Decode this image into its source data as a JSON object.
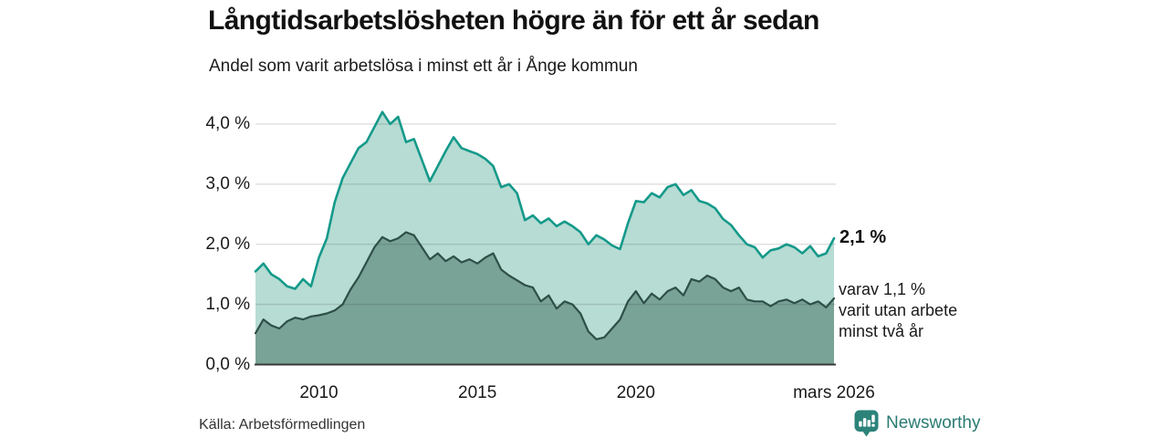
{
  "header": {
    "title": "Långtidsarbetslösheten högre än för ett år sedan",
    "subtitle": "Andel som varit arbetslösa i minst ett år i Ånge kommun"
  },
  "chart_data": {
    "type": "area",
    "title": "Långtidsarbetslösheten högre än för ett år sedan",
    "subtitle": "Andel som varit arbetslösa i minst ett år i Ånge kommun",
    "unit": "%",
    "grid": "horizontal",
    "legend_position": "none",
    "ylim": [
      0,
      4.4
    ],
    "xlim": [
      2008,
      2026.25
    ],
    "y_ticks": [
      {
        "label": "4,0 %",
        "value": 4
      },
      {
        "label": "3,0 %",
        "value": 3
      },
      {
        "label": "2,0 %",
        "value": 2
      },
      {
        "label": "1,0 %",
        "value": 1
      },
      {
        "label": "0,0 %",
        "value": 0
      }
    ],
    "x_ticks": [
      {
        "label": "2010",
        "year": 2010
      },
      {
        "label": "2015",
        "year": 2015
      },
      {
        "label": "2020",
        "year": 2020
      },
      {
        "label": "mars 2026",
        "year": 2026.25
      }
    ],
    "x": [
      2008,
      2008.25,
      2008.5,
      2008.75,
      2009,
      2009.25,
      2009.5,
      2009.75,
      2010,
      2010.25,
      2010.5,
      2010.75,
      2011,
      2011.25,
      2011.5,
      2011.75,
      2012,
      2012.25,
      2012.5,
      2012.75,
      2013,
      2013.25,
      2013.5,
      2013.75,
      2014,
      2014.25,
      2014.5,
      2014.75,
      2015,
      2015.25,
      2015.5,
      2015.75,
      2016,
      2016.25,
      2016.5,
      2016.75,
      2017,
      2017.25,
      2017.5,
      2017.75,
      2018,
      2018.25,
      2018.5,
      2018.75,
      2019,
      2019.25,
      2019.5,
      2019.75,
      2020,
      2020.25,
      2020.5,
      2020.75,
      2021,
      2021.25,
      2021.5,
      2021.75,
      2022,
      2022.25,
      2022.5,
      2022.75,
      2023,
      2023.25,
      2023.5,
      2023.75,
      2024,
      2024.25,
      2024.5,
      2024.75,
      2025,
      2025.25,
      2025.5,
      2025.75,
      2026,
      2026.25
    ],
    "series": [
      {
        "name": "Arbetslösa minst ett år",
        "line_color": "#14998a",
        "fill_color": "#b6dcd3",
        "latest_value": 2.1,
        "values": [
          1.55,
          1.68,
          1.5,
          1.42,
          1.3,
          1.26,
          1.42,
          1.3,
          1.78,
          2.1,
          2.7,
          3.1,
          3.35,
          3.6,
          3.7,
          3.95,
          4.2,
          4.0,
          4.12,
          3.7,
          3.75,
          3.4,
          3.05,
          3.3,
          3.55,
          3.78,
          3.6,
          3.55,
          3.5,
          3.42,
          3.3,
          2.95,
          3.0,
          2.85,
          2.4,
          2.48,
          2.35,
          2.43,
          2.3,
          2.38,
          2.3,
          2.2,
          2.0,
          2.15,
          2.08,
          1.98,
          1.92,
          2.35,
          2.72,
          2.7,
          2.85,
          2.78,
          2.95,
          3.0,
          2.82,
          2.9,
          2.72,
          2.68,
          2.6,
          2.42,
          2.32,
          2.15,
          2.0,
          1.95,
          1.78,
          1.9,
          1.93,
          2.0,
          1.95,
          1.85,
          1.97,
          1.8,
          1.85,
          2.1
        ]
      },
      {
        "name": "Arbetslösa minst två år",
        "line_color": "#2e4f48",
        "fill_color": "#79a396",
        "latest_value": 1.1,
        "values": [
          0.52,
          0.75,
          0.65,
          0.6,
          0.72,
          0.78,
          0.75,
          0.8,
          0.82,
          0.85,
          0.9,
          1.0,
          1.25,
          1.45,
          1.7,
          1.95,
          2.12,
          2.05,
          2.1,
          2.2,
          2.15,
          1.95,
          1.75,
          1.85,
          1.72,
          1.8,
          1.7,
          1.75,
          1.68,
          1.78,
          1.85,
          1.58,
          1.48,
          1.4,
          1.32,
          1.28,
          1.05,
          1.15,
          0.93,
          1.05,
          1.0,
          0.85,
          0.55,
          0.42,
          0.45,
          0.6,
          0.75,
          1.05,
          1.22,
          1.02,
          1.18,
          1.08,
          1.22,
          1.28,
          1.15,
          1.42,
          1.38,
          1.48,
          1.42,
          1.28,
          1.22,
          1.28,
          1.08,
          1.05,
          1.05,
          0.97,
          1.05,
          1.08,
          1.02,
          1.08,
          1.0,
          1.05,
          0.95,
          1.1
        ]
      }
    ],
    "annotations": [
      {
        "text": "2,1 %",
        "style": "bold",
        "attached_to": "Arbetslösa minst ett år"
      },
      {
        "text": "varav 1,1 %\nvarit utan arbete\nminst två år",
        "style": "normal",
        "attached_to": "Arbetslösa minst två år"
      }
    ]
  },
  "annotations": {
    "latest_total": "2,1 %",
    "latest_two_year": "varav 1,1 %\nvarit utan arbete\nminst två år"
  },
  "footer": {
    "source": "Källa: Arbetsförmedlingen",
    "brand": "Newsworthy"
  },
  "colors": {
    "line_one_year": "#14998a",
    "fill_one_year": "#b6dcd3",
    "line_two_year": "#2e4f48",
    "fill_two_year": "#79a396",
    "gridline": "#dedede",
    "baseline": "#383838",
    "brand_teal": "#2a7b72",
    "badge_teal": "#2c837a"
  }
}
